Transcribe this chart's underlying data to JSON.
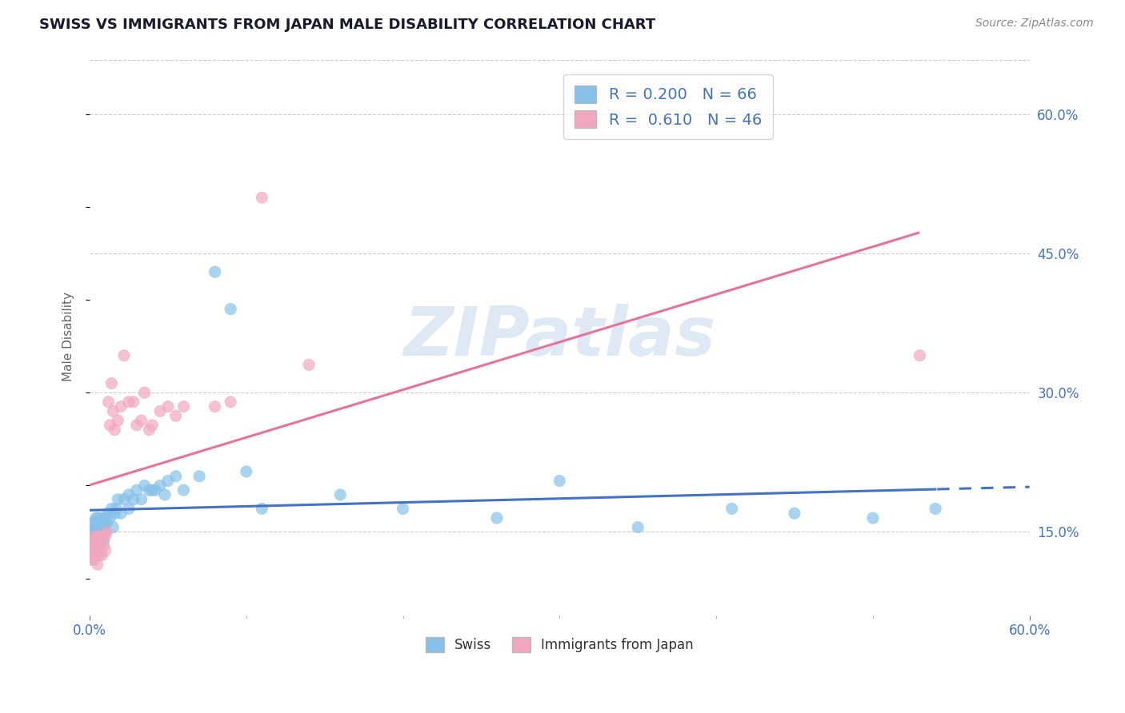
{
  "title": "SWISS VS IMMIGRANTS FROM JAPAN MALE DISABILITY CORRELATION CHART",
  "source": "Source: ZipAtlas.com",
  "ylabel": "Male Disability",
  "right_yticks": [
    0.15,
    0.3,
    0.45,
    0.6
  ],
  "xlim": [
    0.0,
    0.6
  ],
  "ylim": [
    0.06,
    0.66
  ],
  "swiss_R": 0.2,
  "swiss_N": 66,
  "japan_R": 0.61,
  "japan_N": 46,
  "swiss_color": "#85C1E8",
  "japan_color": "#F1A7BE",
  "swiss_line_color": "#4472C4",
  "japan_line_color": "#E8729A",
  "background_color": "#FFFFFF",
  "watermark": "ZIPatlas",
  "swiss_x": [
    0.001,
    0.001,
    0.002,
    0.002,
    0.002,
    0.003,
    0.003,
    0.003,
    0.004,
    0.004,
    0.004,
    0.005,
    0.005,
    0.005,
    0.005,
    0.006,
    0.006,
    0.006,
    0.007,
    0.007,
    0.007,
    0.008,
    0.008,
    0.009,
    0.009,
    0.009,
    0.01,
    0.01,
    0.011,
    0.012,
    0.013,
    0.014,
    0.015,
    0.016,
    0.017,
    0.018,
    0.02,
    0.022,
    0.025,
    0.025,
    0.028,
    0.03,
    0.033,
    0.035,
    0.038,
    0.04,
    0.042,
    0.045,
    0.048,
    0.05,
    0.055,
    0.06,
    0.07,
    0.08,
    0.09,
    0.1,
    0.11,
    0.16,
    0.2,
    0.26,
    0.3,
    0.35,
    0.41,
    0.45,
    0.5,
    0.54
  ],
  "swiss_y": [
    0.13,
    0.145,
    0.14,
    0.15,
    0.16,
    0.135,
    0.15,
    0.16,
    0.14,
    0.155,
    0.165,
    0.13,
    0.145,
    0.155,
    0.165,
    0.135,
    0.15,
    0.16,
    0.14,
    0.155,
    0.165,
    0.145,
    0.16,
    0.14,
    0.155,
    0.165,
    0.15,
    0.165,
    0.16,
    0.17,
    0.165,
    0.175,
    0.155,
    0.17,
    0.175,
    0.185,
    0.17,
    0.185,
    0.175,
    0.19,
    0.185,
    0.195,
    0.185,
    0.2,
    0.195,
    0.195,
    0.195,
    0.2,
    0.19,
    0.205,
    0.21,
    0.195,
    0.21,
    0.43,
    0.39,
    0.215,
    0.175,
    0.19,
    0.175,
    0.165,
    0.205,
    0.155,
    0.175,
    0.17,
    0.165,
    0.175
  ],
  "japan_x": [
    0.001,
    0.001,
    0.002,
    0.002,
    0.003,
    0.003,
    0.003,
    0.004,
    0.004,
    0.005,
    0.005,
    0.005,
    0.006,
    0.006,
    0.007,
    0.007,
    0.008,
    0.008,
    0.009,
    0.01,
    0.01,
    0.011,
    0.012,
    0.013,
    0.014,
    0.015,
    0.016,
    0.018,
    0.02,
    0.022,
    0.025,
    0.028,
    0.03,
    0.033,
    0.035,
    0.038,
    0.04,
    0.045,
    0.05,
    0.055,
    0.06,
    0.08,
    0.09,
    0.11,
    0.14,
    0.53
  ],
  "japan_y": [
    0.12,
    0.13,
    0.125,
    0.14,
    0.12,
    0.135,
    0.145,
    0.125,
    0.14,
    0.115,
    0.13,
    0.145,
    0.125,
    0.14,
    0.13,
    0.145,
    0.125,
    0.145,
    0.135,
    0.13,
    0.145,
    0.15,
    0.29,
    0.265,
    0.31,
    0.28,
    0.26,
    0.27,
    0.285,
    0.34,
    0.29,
    0.29,
    0.265,
    0.27,
    0.3,
    0.26,
    0.265,
    0.28,
    0.285,
    0.275,
    0.285,
    0.285,
    0.29,
    0.51,
    0.33,
    0.34
  ]
}
